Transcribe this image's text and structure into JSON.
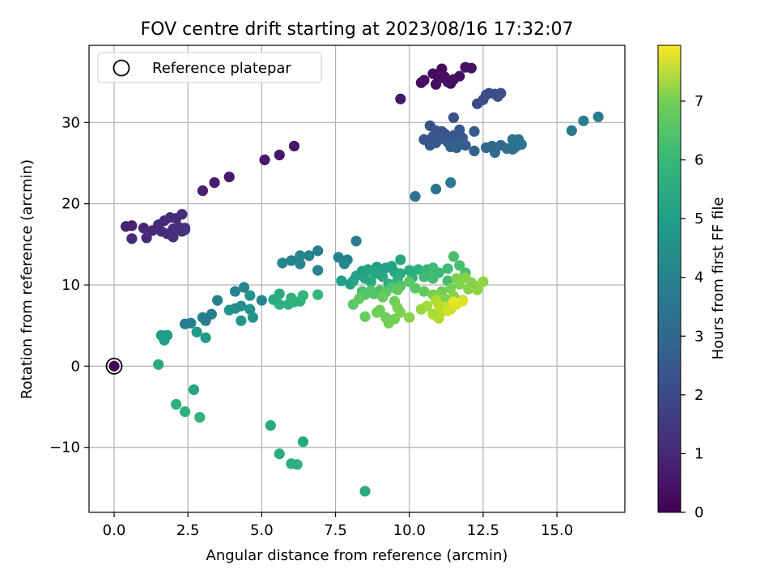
{
  "chart_data": {
    "type": "scatter",
    "title": "FOV centre drift starting at 2023/08/16 17:32:07",
    "xlabel": "Angular distance from reference (arcmin)",
    "ylabel": "Rotation from reference (arcmin)",
    "xlim": [
      -0.85,
      17.3
    ],
    "ylim": [
      -18,
      39.5
    ],
    "xticks": [
      0.0,
      2.5,
      5.0,
      7.5,
      10.0,
      12.5,
      15.0
    ],
    "xtick_labels": [
      "0.0",
      "2.5",
      "5.0",
      "7.5",
      "10.0",
      "12.5",
      "15.0"
    ],
    "yticks": [
      -10,
      0,
      10,
      20,
      30
    ],
    "ytick_labels": [
      "−10",
      "0",
      "10",
      "20",
      "30"
    ],
    "grid": true,
    "legend": {
      "position": "top-left",
      "entries": [
        {
          "label": "Reference platepar",
          "marker": "open-circle"
        }
      ]
    },
    "reference_point": {
      "x": 0.0,
      "y": 0.0
    },
    "colorbar": {
      "label": "Hours from first FF file",
      "colormap": "viridis",
      "range": [
        0,
        7.95
      ],
      "ticks": [
        0,
        1,
        2,
        3,
        4,
        5,
        6,
        7
      ],
      "tick_labels": [
        "0",
        "1",
        "2",
        "3",
        "4",
        "5",
        "6",
        "7"
      ]
    },
    "points": [
      [
        0.0,
        0.0,
        0.0
      ],
      [
        11.1,
        36.6,
        0.3
      ],
      [
        10.8,
        36.0,
        0.3
      ],
      [
        11.2,
        35.6,
        0.3
      ],
      [
        10.5,
        35.2,
        0.3
      ],
      [
        11.0,
        35.4,
        0.3
      ],
      [
        11.5,
        35.3,
        0.35
      ],
      [
        10.4,
        34.9,
        0.3
      ],
      [
        11.4,
        34.8,
        0.3
      ],
      [
        10.9,
        34.7,
        0.3
      ],
      [
        11.3,
        35.0,
        0.35
      ],
      [
        11.7,
        35.7,
        0.35
      ],
      [
        11.9,
        36.8,
        0.4
      ],
      [
        12.1,
        36.7,
        0.4
      ],
      [
        9.7,
        32.9,
        0.5
      ],
      [
        6.1,
        27.1,
        0.5
      ],
      [
        5.6,
        26.0,
        0.5
      ],
      [
        5.1,
        25.4,
        0.55
      ],
      [
        3.9,
        23.3,
        0.6
      ],
      [
        3.4,
        22.6,
        0.65
      ],
      [
        3.0,
        21.6,
        0.7
      ],
      [
        0.4,
        17.2,
        0.8
      ],
      [
        0.6,
        17.3,
        0.8
      ],
      [
        1.0,
        17.0,
        0.85
      ],
      [
        1.3,
        16.7,
        0.85
      ],
      [
        1.5,
        17.4,
        0.9
      ],
      [
        1.7,
        17.9,
        0.95
      ],
      [
        1.9,
        18.3,
        0.95
      ],
      [
        2.1,
        18.2,
        1.0
      ],
      [
        2.3,
        18.7,
        1.0
      ],
      [
        2.4,
        17.0,
        1.05
      ],
      [
        1.6,
        16.6,
        1.0
      ],
      [
        1.8,
        16.3,
        1.05
      ],
      [
        2.0,
        15.9,
        1.1
      ],
      [
        2.3,
        16.6,
        1.1
      ],
      [
        0.6,
        15.7,
        0.9
      ],
      [
        1.1,
        15.8,
        0.95
      ],
      [
        2.2,
        17.1,
        1.1
      ],
      [
        2.0,
        16.9,
        1.1
      ],
      [
        2.4,
        16.8,
        1.15
      ],
      [
        12.3,
        32.3,
        1.7
      ],
      [
        12.5,
        32.8,
        1.8
      ],
      [
        12.7,
        33.6,
        1.8
      ],
      [
        12.9,
        33.5,
        1.9
      ],
      [
        13.0,
        33.2,
        1.9
      ],
      [
        12.6,
        33.4,
        1.85
      ],
      [
        13.1,
        33.6,
        1.9
      ],
      [
        11.5,
        30.6,
        2.0
      ],
      [
        10.7,
        29.6,
        2.0
      ],
      [
        10.9,
        29.0,
        2.1
      ],
      [
        11.2,
        28.6,
        2.1
      ],
      [
        11.5,
        28.4,
        2.2
      ],
      [
        11.8,
        28.1,
        2.2
      ],
      [
        10.8,
        28.3,
        2.1
      ],
      [
        11.0,
        27.9,
        2.2
      ],
      [
        11.3,
        27.6,
        2.3
      ],
      [
        11.6,
        27.3,
        2.3
      ],
      [
        11.9,
        27.2,
        2.3
      ],
      [
        10.7,
        27.2,
        2.2
      ],
      [
        11.1,
        28.9,
        2.1
      ],
      [
        11.7,
        29.1,
        2.2
      ],
      [
        12.2,
        28.9,
        2.3
      ],
      [
        10.9,
        27.5,
        2.2
      ],
      [
        11.4,
        27.0,
        2.4
      ],
      [
        11.6,
        26.9,
        2.4
      ],
      [
        11.8,
        27.5,
        2.4
      ],
      [
        12.2,
        26.5,
        2.5
      ],
      [
        12.6,
        26.9,
        2.7
      ],
      [
        12.8,
        27.1,
        2.7
      ],
      [
        12.9,
        26.3,
        2.8
      ],
      [
        13.1,
        27.2,
        2.8
      ],
      [
        13.3,
        26.8,
        2.9
      ],
      [
        13.5,
        27.9,
        3.0
      ],
      [
        13.6,
        27.0,
        3.0
      ],
      [
        13.7,
        27.9,
        3.0
      ],
      [
        13.5,
        26.7,
        2.9
      ],
      [
        13.8,
        27.3,
        3.1
      ],
      [
        10.5,
        27.9,
        2.0
      ],
      [
        11.2,
        28.3,
        2.2
      ],
      [
        15.5,
        29.0,
        3.3
      ],
      [
        15.9,
        30.2,
        3.4
      ],
      [
        16.4,
        30.7,
        3.4
      ],
      [
        10.2,
        20.9,
        3.0
      ],
      [
        10.9,
        21.8,
        3.1
      ],
      [
        11.4,
        22.6,
        3.2
      ],
      [
        8.2,
        15.4,
        3.4
      ],
      [
        7.6,
        13.4,
        3.5
      ],
      [
        6.9,
        14.2,
        3.4
      ],
      [
        6.6,
        13.6,
        3.5
      ],
      [
        6.3,
        13.6,
        3.6
      ],
      [
        6.0,
        13.0,
        3.6
      ],
      [
        5.7,
        12.7,
        3.7
      ],
      [
        7.9,
        13.1,
        3.5
      ],
      [
        6.9,
        11.8,
        3.6
      ],
      [
        6.3,
        12.6,
        3.6
      ],
      [
        7.8,
        12.6,
        3.7
      ],
      [
        5.0,
        8.1,
        3.6
      ],
      [
        4.4,
        9.7,
        3.6
      ],
      [
        4.1,
        9.2,
        3.6
      ],
      [
        3.5,
        8.1,
        3.5
      ],
      [
        3.3,
        6.4,
        3.4
      ],
      [
        3.0,
        6.0,
        3.5
      ],
      [
        3.1,
        5.6,
        3.4
      ],
      [
        2.4,
        5.2,
        3.4
      ],
      [
        2.6,
        5.3,
        3.5
      ],
      [
        4.1,
        7.1,
        3.9
      ],
      [
        4.3,
        7.4,
        3.9
      ],
      [
        4.6,
        7.0,
        4.0
      ],
      [
        3.9,
        6.9,
        4.0
      ],
      [
        4.3,
        5.6,
        4.2
      ],
      [
        4.7,
        6.0,
        4.2
      ],
      [
        4.6,
        8.7,
        4.1
      ],
      [
        2.8,
        4.2,
        4.4
      ],
      [
        3.1,
        3.5,
        4.3
      ],
      [
        1.6,
        3.8,
        4.4
      ],
      [
        1.8,
        3.8,
        4.4
      ],
      [
        1.7,
        3.2,
        4.4
      ],
      [
        2.7,
        -2.9,
        4.6
      ],
      [
        1.5,
        0.2,
        4.9
      ],
      [
        2.1,
        -4.7,
        5.0
      ],
      [
        2.4,
        -5.6,
        5.0
      ],
      [
        2.9,
        -6.3,
        5.1
      ],
      [
        5.3,
        -7.3,
        4.8
      ],
      [
        5.6,
        -10.8,
        4.9
      ],
      [
        6.0,
        -12.0,
        5.0
      ],
      [
        6.2,
        -12.1,
        5.0
      ],
      [
        6.4,
        -9.3,
        4.8
      ],
      [
        8.5,
        -15.4,
        4.8
      ],
      [
        5.4,
        8.2,
        4.8
      ],
      [
        5.6,
        8.9,
        4.9
      ],
      [
        5.6,
        7.6,
        5.0
      ],
      [
        5.9,
        7.6,
        5.0
      ],
      [
        6.1,
        7.9,
        5.1
      ],
      [
        6.3,
        8.0,
        5.0
      ],
      [
        6.4,
        8.7,
        5.2
      ],
      [
        6.9,
        8.8,
        5.2
      ],
      [
        6.0,
        8.4,
        5.1
      ],
      [
        7.7,
        10.5,
        4.4
      ],
      [
        8.0,
        10.1,
        4.5
      ],
      [
        8.2,
        11.1,
        4.6
      ],
      [
        8.4,
        11.7,
        4.5
      ],
      [
        8.6,
        11.9,
        4.6
      ],
      [
        8.9,
        12.2,
        4.5
      ],
      [
        9.2,
        12.1,
        4.6
      ],
      [
        9.7,
        13.1,
        4.7
      ],
      [
        8.9,
        11.4,
        4.7
      ],
      [
        9.1,
        11.0,
        4.8
      ],
      [
        9.5,
        11.6,
        4.8
      ],
      [
        9.7,
        11.4,
        4.9
      ],
      [
        10.0,
        11.8,
        4.9
      ],
      [
        10.3,
        11.9,
        5.0
      ],
      [
        8.5,
        10.8,
        4.7
      ],
      [
        8.7,
        10.4,
        4.8
      ],
      [
        9.3,
        10.1,
        4.9
      ],
      [
        9.6,
        10.6,
        5.0
      ],
      [
        10.1,
        10.9,
        5.1
      ],
      [
        9.4,
        12.3,
        4.6
      ],
      [
        8.8,
        11.6,
        4.7
      ],
      [
        8.1,
        10.5,
        4.6
      ],
      [
        10.6,
        11.9,
        5.3
      ],
      [
        10.8,
        12.1,
        5.4
      ],
      [
        11.0,
        11.5,
        5.4
      ],
      [
        11.3,
        12.0,
        5.5
      ],
      [
        11.5,
        13.5,
        5.6
      ],
      [
        11.7,
        12.4,
        5.6
      ],
      [
        11.9,
        11.5,
        5.6
      ],
      [
        10.5,
        11.0,
        5.4
      ],
      [
        10.8,
        10.8,
        5.5
      ],
      [
        11.3,
        10.5,
        5.5
      ],
      [
        8.4,
        9.2,
        5.6
      ],
      [
        8.7,
        9.3,
        5.7
      ],
      [
        9.0,
        9.3,
        5.7
      ],
      [
        9.4,
        9.7,
        5.8
      ],
      [
        9.7,
        9.9,
        5.8
      ],
      [
        10.0,
        10.4,
        5.9
      ],
      [
        10.2,
        9.6,
        5.9
      ],
      [
        10.5,
        9.2,
        6.0
      ],
      [
        8.5,
        8.8,
        5.8
      ],
      [
        8.8,
        8.9,
        5.8
      ],
      [
        9.2,
        9.1,
        5.9
      ],
      [
        9.6,
        9.4,
        6.0
      ],
      [
        8.1,
        7.6,
        5.9
      ],
      [
        8.3,
        8.3,
        6.0
      ],
      [
        9.1,
        8.5,
        6.1
      ],
      [
        9.5,
        8.0,
        6.2
      ],
      [
        11.1,
        9.2,
        6.3
      ],
      [
        11.4,
        9.6,
        6.3
      ],
      [
        11.7,
        10.1,
        6.4
      ],
      [
        11.9,
        10.9,
        6.5
      ],
      [
        12.0,
        9.5,
        6.5
      ],
      [
        12.3,
        9.8,
        6.6
      ],
      [
        12.5,
        10.4,
        6.6
      ],
      [
        12.3,
        9.4,
        6.6
      ],
      [
        11.6,
        10.8,
        6.4
      ],
      [
        12.1,
        10.3,
        6.5
      ],
      [
        10.8,
        8.8,
        6.3
      ],
      [
        11.2,
        8.3,
        6.4
      ],
      [
        11.5,
        8.6,
        6.5
      ],
      [
        11.8,
        8.1,
        6.5
      ],
      [
        10.9,
        8.5,
        6.4
      ],
      [
        8.5,
        6.1,
        6.1
      ],
      [
        8.9,
        6.6,
        6.2
      ],
      [
        9.2,
        6.0,
        6.2
      ],
      [
        9.3,
        5.3,
        6.3
      ],
      [
        9.5,
        5.8,
        6.3
      ],
      [
        9.7,
        6.6,
        6.4
      ],
      [
        10.0,
        6.0,
        6.5
      ],
      [
        9.0,
        6.9,
        6.2
      ],
      [
        9.6,
        7.2,
        6.3
      ],
      [
        10.4,
        7.0,
        6.7
      ],
      [
        10.6,
        7.4,
        6.8
      ],
      [
        10.8,
        6.4,
        6.9
      ],
      [
        11.0,
        5.9,
        7.0
      ],
      [
        11.1,
        6.7,
        7.1
      ],
      [
        11.2,
        7.3,
        7.2
      ],
      [
        11.4,
        7.0,
        7.3
      ],
      [
        11.6,
        7.6,
        7.5
      ],
      [
        11.8,
        8.0,
        7.6
      ],
      [
        11.5,
        7.9,
        7.7
      ],
      [
        11.3,
        6.8,
        7.4
      ],
      [
        10.9,
        8.1,
        7.0
      ],
      [
        11.0,
        7.5,
        7.1
      ]
    ]
  }
}
